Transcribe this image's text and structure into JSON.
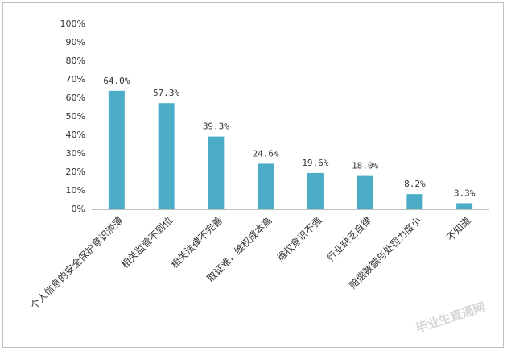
{
  "chart_data": {
    "type": "bar",
    "categories": [
      "个人信息的安全保护意识淡薄",
      "相关监管不到位",
      "相关法律不完善",
      "取证难，维权成本高",
      "维权意识不强",
      "行业缺乏自律",
      "赔偿数额与处罚力度小",
      "不知道"
    ],
    "values": [
      64.0,
      57.3,
      39.3,
      24.6,
      19.6,
      18.0,
      8.2,
      3.3
    ],
    "value_labels": [
      "64.0%",
      "57.3%",
      "39.3%",
      "24.6%",
      "19.6%",
      "18.0%",
      "8.2%",
      "3.3%"
    ],
    "color": "#4bacc6",
    "ylim": [
      0,
      100
    ],
    "yticks": [
      {
        "value": 0,
        "label": "0%"
      },
      {
        "value": 10,
        "label": "10%"
      },
      {
        "value": 20,
        "label": "20%"
      },
      {
        "value": 30,
        "label": "30%"
      },
      {
        "value": 40,
        "label": "40%"
      },
      {
        "value": 50,
        "label": "50%"
      },
      {
        "value": 60,
        "label": "60%"
      },
      {
        "value": 70,
        "label": "70%"
      },
      {
        "value": 80,
        "label": "80%"
      },
      {
        "value": 90,
        "label": "90%"
      },
      {
        "value": 100,
        "label": "100%"
      }
    ],
    "grid": false,
    "watermark": "毕业生直通网"
  }
}
